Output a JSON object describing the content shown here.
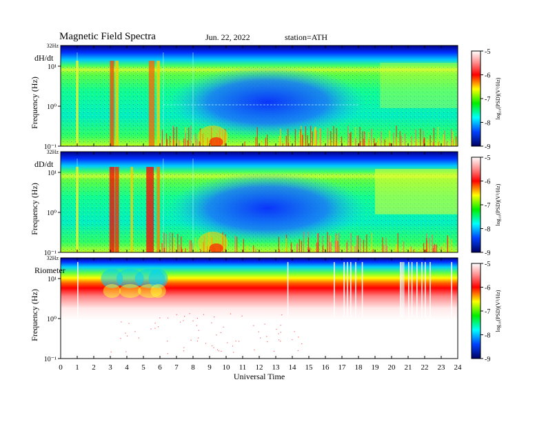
{
  "header": {
    "title": "Magnetic  Field  Spectra",
    "date": "Jun. 22, 2022",
    "station": "station=ATH"
  },
  "chart_data": [
    {
      "type": "heatmap",
      "panel_label": "dH/dt",
      "ylabel": "Frequency  (Hz)",
      "y_top_label": "32Hz",
      "yticks": [
        "10¹",
        "10⁰",
        "10⁻¹"
      ],
      "xlim": [
        0,
        24
      ],
      "colorbar_label": "log₁₀(PSD)(V²/Hz)",
      "colorbar_ticks": [
        "-5",
        "-6",
        "-7",
        "-8",
        "-9"
      ],
      "clim": [
        -9,
        -5
      ],
      "note": "Broadband activity bursts near 1, 3-3.5, 5-6 UT and 17.5-24 UT; quiet blue band 7-17 UT above ~0.5 Hz"
    },
    {
      "type": "heatmap",
      "panel_label": "dD/dt",
      "ylabel": "Frequency  (Hz)",
      "y_top_label": "32Hz",
      "yticks": [
        "10¹",
        "10⁰",
        "10⁻¹"
      ],
      "xlim": [
        0,
        24
      ],
      "colorbar_label": "log₁₀(PSD)(V²/Hz)",
      "colorbar_ticks": [
        "-5",
        "-6",
        "-7",
        "-8",
        "-9"
      ],
      "clim": [
        -9,
        -5
      ],
      "note": "Strong red bursts near 3-3.5 UT and 5-6 UT; enhanced activity 18-24 UT"
    },
    {
      "type": "heatmap",
      "panel_label": "Riometer",
      "ylabel": "Frequency  (Hz)",
      "y_top_label": "32Hz",
      "yticks": [
        "10¹",
        "10⁰",
        "10⁻¹"
      ],
      "xlim": [
        0,
        24
      ],
      "xlabel": "Universal Time",
      "xticks": [
        "0",
        "1",
        "2",
        "3",
        "4",
        "5",
        "6",
        "7",
        "8",
        "9",
        "10",
        "11",
        "12",
        "13",
        "14",
        "15",
        "16",
        "17",
        "18",
        "19",
        "20",
        "21",
        "22",
        "23",
        "24"
      ],
      "colorbar_label": "log₁₀(PSD)(V²/Hz)",
      "colorbar_ticks": [
        "-5",
        "-6",
        "-7",
        "-8",
        "-9"
      ],
      "clim": [
        -9,
        -5
      ],
      "note": "Signal confined above ~5 Hz, fading to white below; vertical gaps near 17-18 UT and 20.5-22 UT"
    }
  ]
}
